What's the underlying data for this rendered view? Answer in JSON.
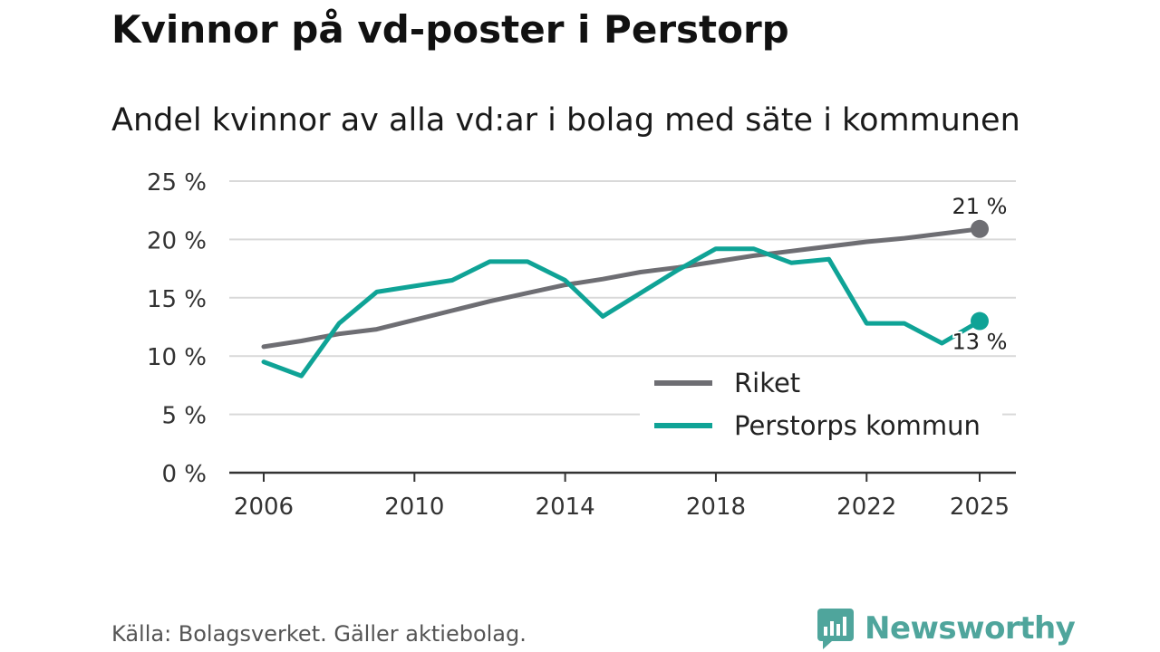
{
  "chart_data": {
    "type": "line",
    "title": "Kvinnor på vd-poster i Perstorp",
    "subtitle": "Andel kvinnor av alla vd:ar i bolag med säte i kommunen",
    "xlabel": "",
    "ylabel": "",
    "xlim": [
      2005,
      2026
    ],
    "ylim": [
      0,
      25
    ],
    "y_ticks": [
      {
        "value": 0,
        "label": "0 %"
      },
      {
        "value": 5,
        "label": "5 %"
      },
      {
        "value": 10,
        "label": "10 %"
      },
      {
        "value": 15,
        "label": "15 %"
      },
      {
        "value": 20,
        "label": "20 %"
      },
      {
        "value": 25,
        "label": "25 %"
      }
    ],
    "x_ticks": [
      {
        "value": 2006,
        "label": "2006"
      },
      {
        "value": 2010,
        "label": "2010"
      },
      {
        "value": 2014,
        "label": "2014"
      },
      {
        "value": 2018,
        "label": "2018"
      },
      {
        "value": 2022,
        "label": "2022"
      },
      {
        "value": 2025,
        "label": "2025"
      }
    ],
    "grid": true,
    "legend_position": "bottom-right",
    "series": [
      {
        "name": "Riket",
        "color": "#6e6e73",
        "x": [
          2006,
          2007,
          2008,
          2009,
          2010,
          2011,
          2012,
          2013,
          2014,
          2015,
          2016,
          2017,
          2018,
          2019,
          2020,
          2021,
          2022,
          2023,
          2024,
          2025
        ],
        "values": [
          10.8,
          11.3,
          11.9,
          12.3,
          13.1,
          13.9,
          14.7,
          15.4,
          16.1,
          16.6,
          17.2,
          17.6,
          18.1,
          18.6,
          19.0,
          19.4,
          19.8,
          20.1,
          20.5,
          20.9
        ],
        "end_label": "21 %"
      },
      {
        "name": "Perstorps kommun",
        "color": "#0fa396",
        "x": [
          2006,
          2007,
          2008,
          2009,
          2010,
          2011,
          2012,
          2013,
          2014,
          2015,
          2016,
          2017,
          2018,
          2019,
          2020,
          2021,
          2022,
          2023,
          2024,
          2025
        ],
        "values": [
          9.5,
          8.3,
          12.8,
          15.5,
          16.0,
          16.5,
          18.1,
          18.1,
          16.5,
          13.4,
          15.4,
          17.4,
          19.2,
          19.2,
          18.0,
          18.3,
          12.8,
          12.8,
          11.1,
          13.0
        ],
        "end_label": "13 %"
      }
    ]
  },
  "footer": {
    "source": "Källa: Bolagsverket. Gäller aktiebolag.",
    "logo_text": "Newsworthy"
  }
}
